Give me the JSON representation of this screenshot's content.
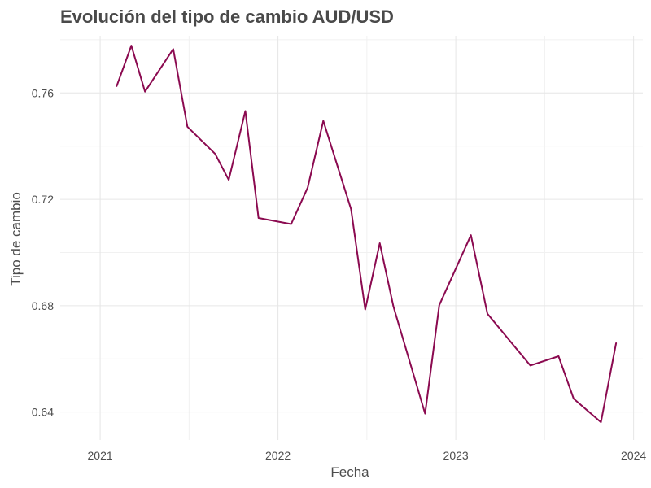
{
  "chart_data": {
    "type": "line",
    "title": "Evolución del tipo de cambio AUD/USD",
    "xlabel": "Fecha",
    "ylabel": "Tipo de cambio",
    "x_ticks": [
      "2021-01-01",
      "2022-01-01",
      "2023-01-01",
      "2024-01-01"
    ],
    "x_tick_labels": [
      "2021",
      "2022",
      "2023",
      "2024"
    ],
    "y_ticks": [
      0.64,
      0.68,
      0.72,
      0.76
    ],
    "y_tick_labels": [
      "0.64",
      "0.68",
      "0.72",
      "0.76"
    ],
    "xlim": [
      "2020-10-11",
      "2024-01-20"
    ],
    "ylim": [
      0.6295,
      0.7815
    ],
    "grid": true,
    "legend": "none",
    "line_color": "#8B0A50",
    "series": [
      {
        "x": [
          "2021-02-04",
          "2021-03-06",
          "2021-04-03",
          "2021-05-31",
          "2021-06-29",
          "2021-08-25",
          "2021-09-22",
          "2021-10-26",
          "2021-11-22",
          "2022-01-28",
          "2022-03-03",
          "2022-04-04",
          "2022-05-31",
          "2022-06-29",
          "2022-07-29",
          "2022-08-26",
          "2022-10-30",
          "2022-11-28",
          "2023-02-01",
          "2023-03-07",
          "2023-06-03",
          "2023-07-31",
          "2023-08-31",
          "2023-10-26",
          "2023-11-26"
        ],
        "y": [
          0.7626,
          0.7778,
          0.7605,
          0.7765,
          0.7473,
          0.7371,
          0.7273,
          0.7532,
          0.713,
          0.7107,
          0.7244,
          0.7495,
          0.7163,
          0.6786,
          0.7035,
          0.6797,
          0.6394,
          0.6802,
          0.7065,
          0.677,
          0.6575,
          0.661,
          0.645,
          0.6362,
          0.6659
        ]
      }
    ]
  }
}
